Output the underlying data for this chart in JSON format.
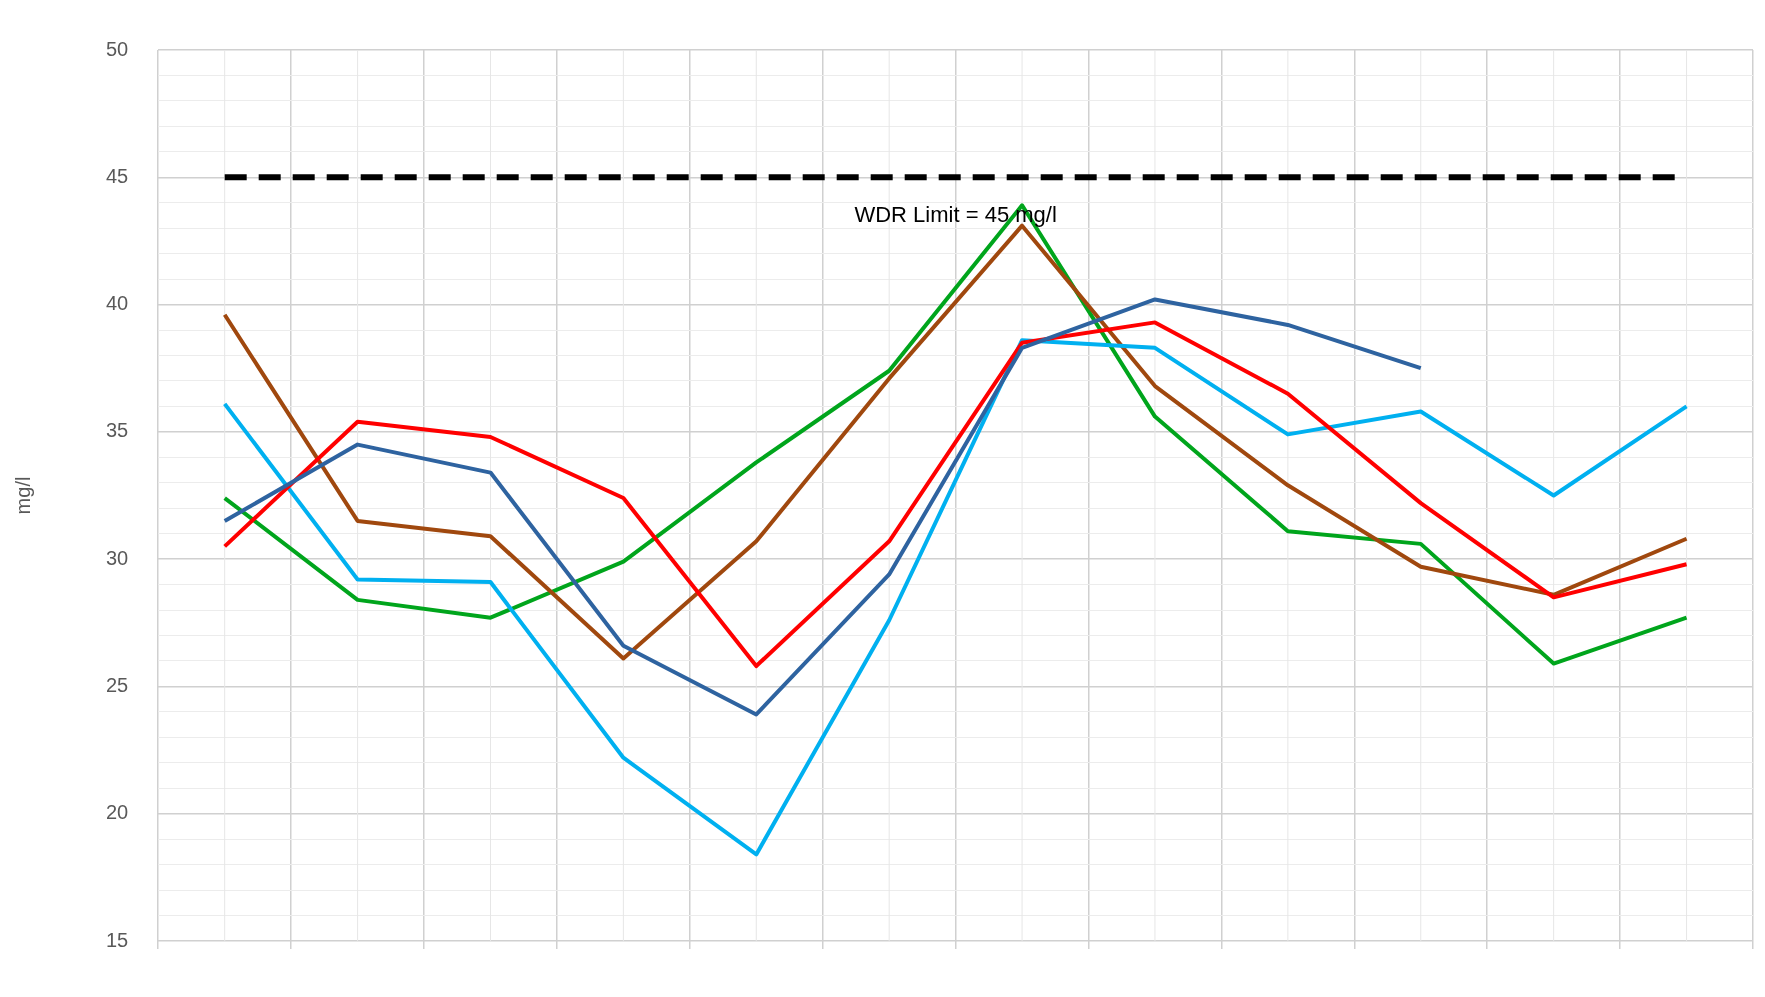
{
  "chart_data": {
    "type": "line",
    "ylabel": "mg/l",
    "categories": [
      null,
      null,
      null,
      null,
      null,
      null,
      null,
      null,
      null,
      null,
      null,
      null
    ],
    "series": [
      {
        "color": "#2e63a0",
        "values": [
          31.5,
          34.5,
          33.4,
          26.6,
          23.9,
          29.4,
          38.3,
          40.2,
          39.2,
          37.5,
          null,
          null
        ]
      },
      {
        "color": "#ff0000",
        "values": [
          30.5,
          35.4,
          34.8,
          32.4,
          25.8,
          30.7,
          38.5,
          39.3,
          36.5,
          32.2,
          28.5,
          29.8
        ]
      },
      {
        "color": "#00b0f0",
        "values": [
          36.1,
          29.2,
          29.1,
          22.2,
          18.4,
          27.6,
          38.6,
          38.3,
          34.9,
          35.8,
          32.5,
          36.0
        ]
      },
      {
        "color": "#a0480e",
        "values": [
          39.6,
          31.5,
          30.9,
          26.1,
          30.7,
          37.1,
          43.1,
          36.8,
          32.9,
          29.7,
          28.6,
          30.8
        ]
      },
      {
        "color": "#00a51c",
        "values": [
          32.4,
          28.4,
          27.7,
          29.9,
          33.8,
          37.4,
          43.9,
          35.6,
          31.1,
          30.6,
          25.9,
          27.7
        ]
      }
    ],
    "ref_lines": [
      {
        "axis": "y",
        "value": 45,
        "label": "WDR Limit = 45 mg/l",
        "color": "#000000",
        "line_style": "dashed"
      }
    ],
    "ylim": [
      15,
      50
    ],
    "yticks": [
      15,
      {
        "value": 16,
        "label": null
      },
      {
        "value": 17,
        "label": null
      },
      {
        "value": 18,
        "label": null
      },
      {
        "value": 19,
        "label": null
      },
      20,
      {
        "value": 21,
        "label": null
      },
      {
        "value": 22,
        "label": null
      },
      {
        "value": 23,
        "label": null
      },
      {
        "value": 24,
        "label": null
      },
      25,
      {
        "value": 26,
        "label": null
      },
      {
        "value": 27,
        "label": null
      },
      {
        "value": 28,
        "label": null
      },
      {
        "value": 29,
        "label": null
      },
      30,
      {
        "value": 31,
        "label": null
      },
      {
        "value": 32,
        "label": null
      },
      {
        "value": 33,
        "label": null
      },
      {
        "value": 34,
        "label": null
      },
      35,
      {
        "value": 36,
        "label": null
      },
      {
        "value": 37,
        "label": null
      },
      {
        "value": 38,
        "label": null
      },
      {
        "value": 39,
        "label": null
      },
      40,
      {
        "value": 41,
        "label": null
      },
      {
        "value": 42,
        "label": null
      },
      {
        "value": 43,
        "label": null
      },
      {
        "value": 44,
        "label": null
      },
      45,
      {
        "value": 46,
        "label": null
      },
      {
        "value": 47,
        "label": null
      },
      {
        "value": 48,
        "label": null
      },
      {
        "value": 49,
        "label": null
      },
      50
    ],
    "grid": true,
    "legend": false,
    "marker": "none",
    "line_style": "solid",
    "tick_labels": "y"
  }
}
